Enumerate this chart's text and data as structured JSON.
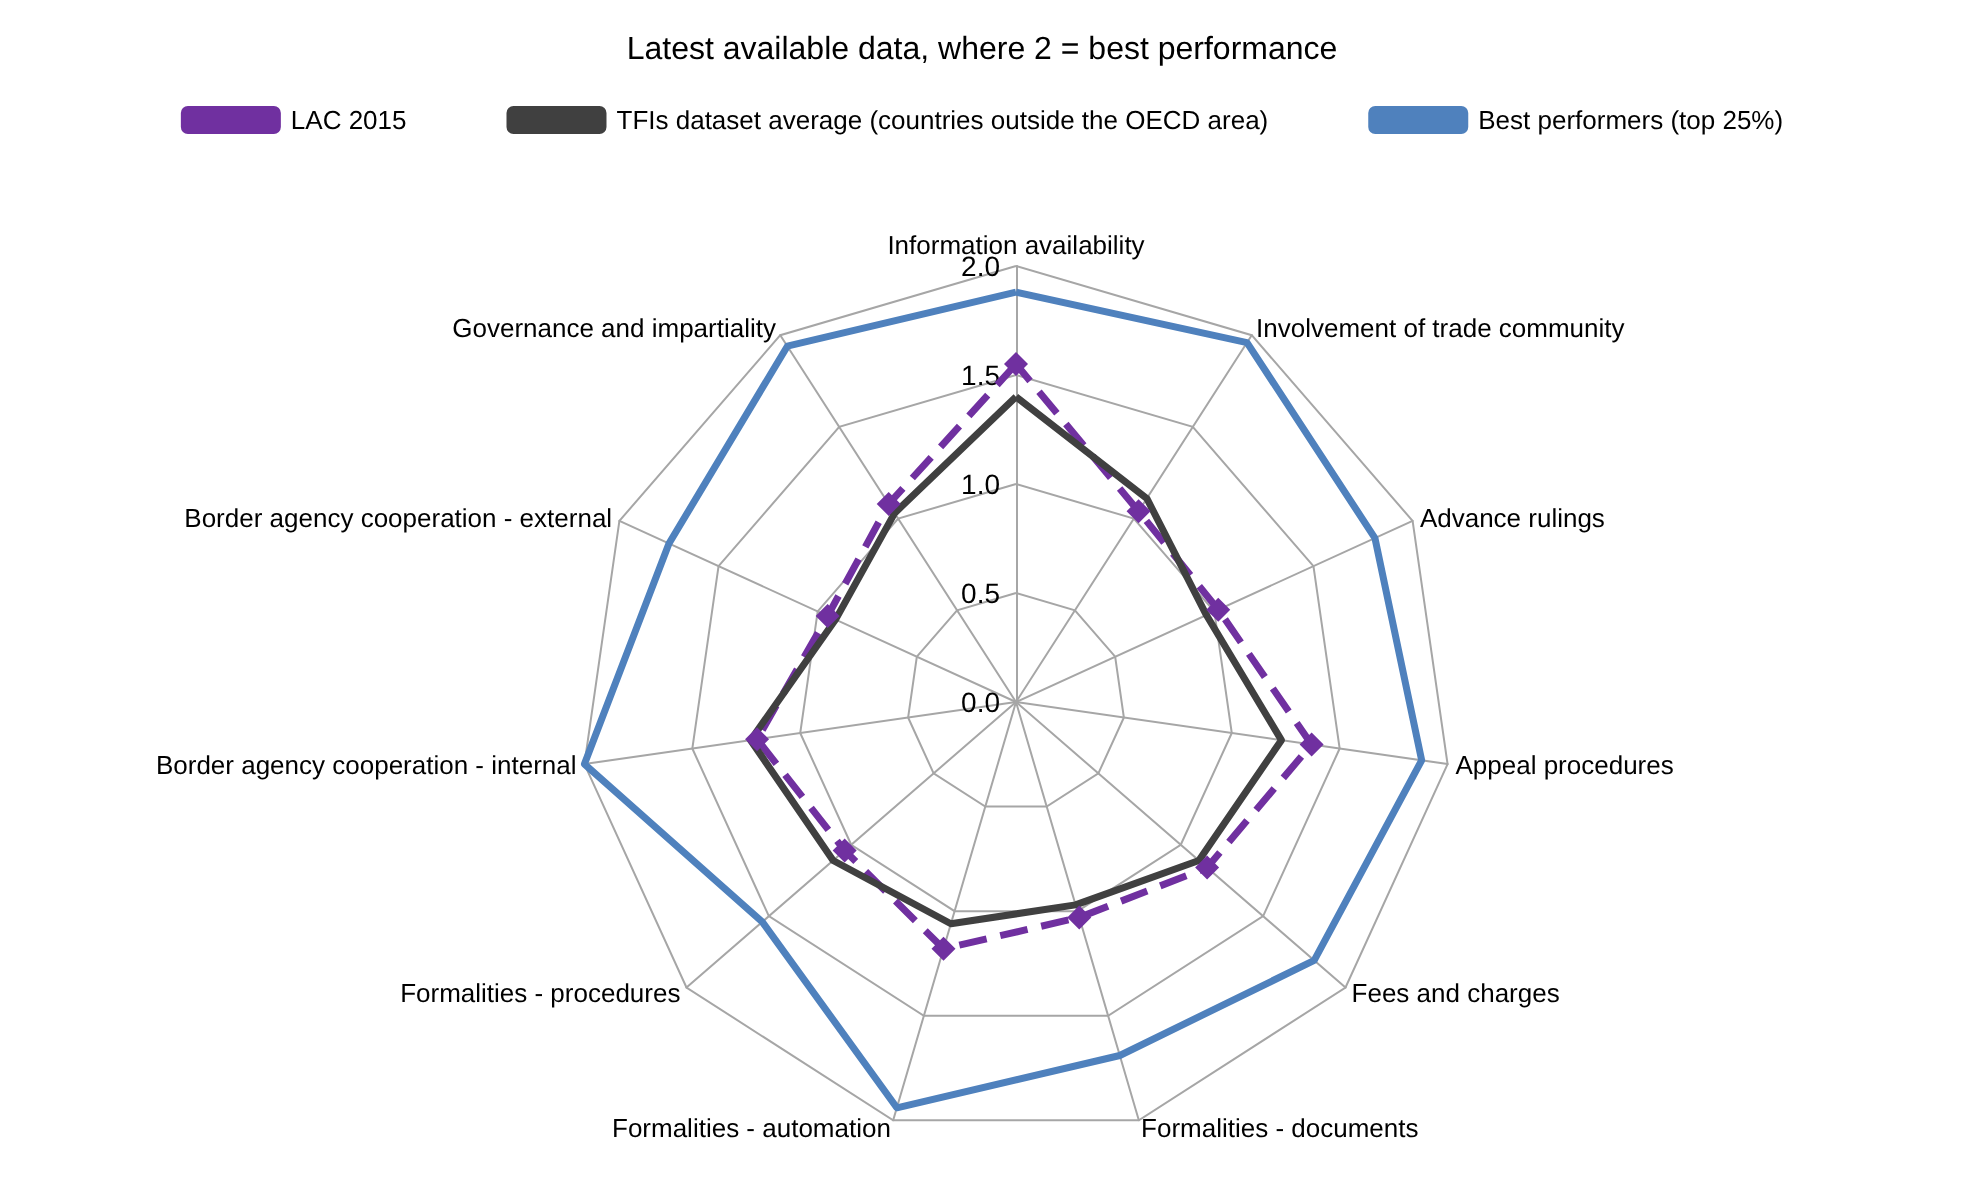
{
  "chart_data": {
    "type": "radar",
    "title": "Latest available data, where 2 = best performance",
    "categories": [
      "Information availability",
      "Involvement of trade community",
      "Advance rulings",
      "Appeal procedures",
      "Fees and charges",
      "Formalities - documents",
      "Formalities - automation",
      "Formalities - procedures",
      "Border agency cooperation - internal",
      "Border agency cooperation - external",
      "Governance and impartiality"
    ],
    "series": [
      {
        "name": "LAC 2015",
        "color": "#7030a0",
        "marker": "diamond",
        "line_style": "dashed",
        "values": [
          1.55,
          1.04,
          1.02,
          1.37,
          1.16,
          1.03,
          1.18,
          1.04,
          1.2,
          0.95,
          1.08
        ]
      },
      {
        "name": "TFIs dataset average (countries outside the OECD area)",
        "color": "#404040",
        "marker": "none",
        "line_style": "solid",
        "values": [
          1.4,
          1.11,
          0.96,
          1.23,
          1.11,
          0.97,
          1.06,
          1.11,
          1.23,
          0.91,
          1.03
        ]
      },
      {
        "name": "Best performers (top 25%)",
        "color": "#4f81bd",
        "marker": "none",
        "line_style": "solid",
        "values": [
          1.88,
          1.96,
          1.81,
          1.88,
          1.81,
          1.69,
          1.94,
          1.54,
          2.0,
          1.75,
          1.94
        ]
      }
    ],
    "ylim": [
      0,
      2
    ],
    "yticks": [
      {
        "value": 0,
        "label": "0.0"
      },
      {
        "value": 0.5,
        "label": "0.5"
      },
      {
        "value": 1,
        "label": "1.0"
      },
      {
        "value": 1.5,
        "label": "1.5"
      },
      {
        "value": 2,
        "label": "2.0"
      }
    ],
    "grid": true,
    "legend": "top"
  }
}
